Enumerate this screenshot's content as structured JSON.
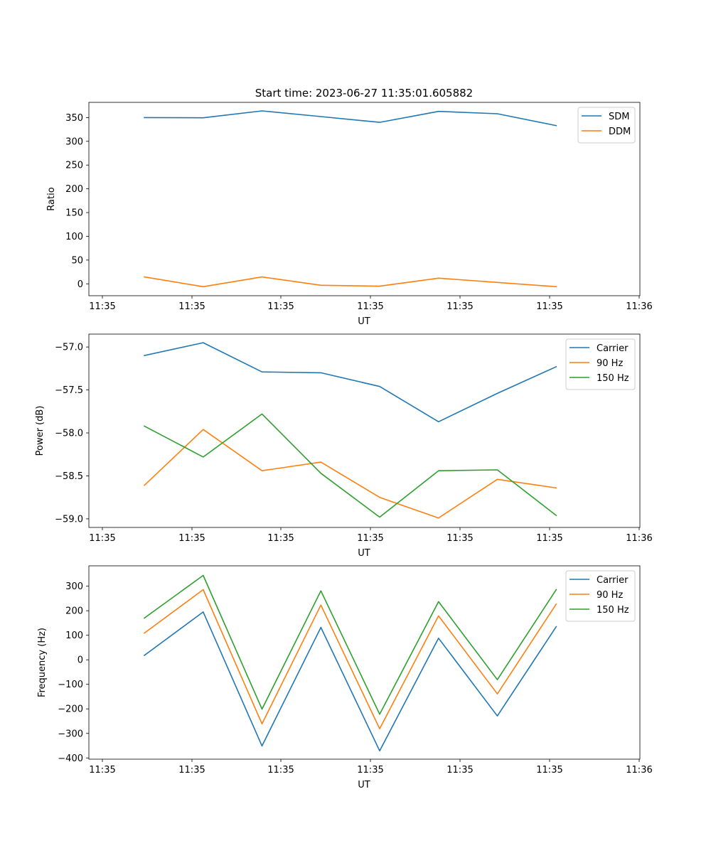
{
  "figure_title": "Start time: 2023-06-27 11:35:01.605882",
  "colors": {
    "blue": "#1f77b4",
    "orange": "#ff7f0e",
    "green": "#2ca02c"
  },
  "chart_data": [
    {
      "type": "line",
      "title": "Start time: 2023-06-27 11:35:01.605882",
      "xlabel": "UT",
      "ylabel": "Ratio",
      "x_tick_labels": [
        "11:35",
        "11:35",
        "11:35",
        "11:35",
        "11:35",
        "11:35",
        "11:36"
      ],
      "y_ticks": [
        0,
        50,
        100,
        150,
        200,
        250,
        300,
        350
      ],
      "y_tick_labels": [
        "0",
        "50",
        "100",
        "150",
        "200",
        "250",
        "300",
        "350"
      ],
      "ylim": [
        -25,
        382
      ],
      "grid": false,
      "legend": "upper right",
      "series": [
        {
          "name": "SDM",
          "color": "#1f77b4",
          "values": [
            350,
            349.5,
            364,
            352,
            340,
            363,
            358,
            333
          ]
        },
        {
          "name": "DDM",
          "color": "#ff7f0e",
          "values": [
            14.5,
            -6,
            14.5,
            -3,
            -5,
            12,
            3,
            -6
          ]
        }
      ]
    },
    {
      "type": "line",
      "title": "",
      "xlabel": "UT",
      "ylabel": "Power (dB)",
      "x_tick_labels": [
        "11:35",
        "11:35",
        "11:35",
        "11:35",
        "11:35",
        "11:35",
        "11:36"
      ],
      "y_ticks": [
        -59.0,
        -58.5,
        -58.0,
        -57.5,
        -57.0
      ],
      "y_tick_labels": [
        "−59.0",
        "−58.5",
        "−58.0",
        "−57.5",
        "−57.0"
      ],
      "ylim": [
        -59.1,
        -56.85
      ],
      "grid": false,
      "legend": "upper right",
      "series": [
        {
          "name": "Carrier",
          "color": "#1f77b4",
          "values": [
            -57.1,
            -56.95,
            -57.29,
            -57.3,
            -57.46,
            -57.87,
            -57.54,
            -57.23
          ]
        },
        {
          "name": "90 Hz",
          "color": "#ff7f0e",
          "values": [
            -58.61,
            -57.96,
            -58.44,
            -58.34,
            -58.75,
            -58.99,
            -58.54,
            -58.64
          ]
        },
        {
          "name": "150 Hz",
          "color": "#2ca02c",
          "values": [
            -57.92,
            -58.28,
            -57.78,
            -58.47,
            -58.98,
            -58.44,
            -58.43,
            -58.96
          ]
        }
      ]
    },
    {
      "type": "line",
      "title": "",
      "xlabel": "UT",
      "ylabel": "Frequency (Hz)",
      "x_tick_labels": [
        "11:35",
        "11:35",
        "11:35",
        "11:35",
        "11:35",
        "11:35",
        "11:36"
      ],
      "y_ticks": [
        -400,
        -300,
        -200,
        -100,
        0,
        100,
        200,
        300
      ],
      "y_tick_labels": [
        "−400",
        "−300",
        "−200",
        "−100",
        "0",
        "100",
        "200",
        "300"
      ],
      "ylim": [
        -405,
        383
      ],
      "grid": false,
      "legend": "upper right",
      "series": [
        {
          "name": "Carrier",
          "color": "#1f77b4",
          "values": [
            18,
            195,
            -351,
            132,
            -371,
            88,
            -229,
            135
          ]
        },
        {
          "name": "90 Hz",
          "color": "#ff7f0e",
          "values": [
            109,
            286,
            -261,
            223,
            -281,
            179,
            -139,
            227
          ]
        },
        {
          "name": "150 Hz",
          "color": "#2ca02c",
          "values": [
            170,
            344,
            -201,
            281,
            -222,
            237,
            -81,
            286
          ]
        }
      ]
    }
  ]
}
